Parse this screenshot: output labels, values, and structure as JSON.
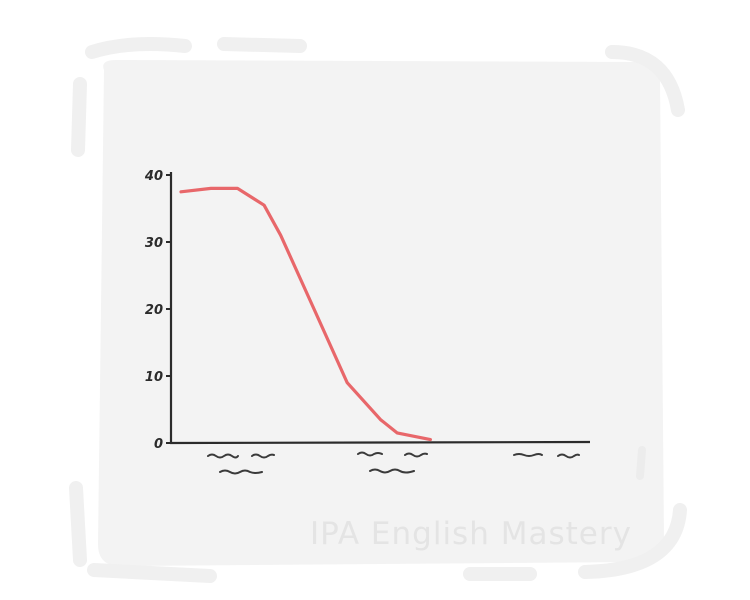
{
  "chart_data": {
    "type": "line",
    "title": "",
    "xlabel": "",
    "ylabel": "",
    "x": [
      0,
      0.9,
      1.7,
      2.5,
      3.0,
      4.0,
      5.0,
      6.0,
      6.5,
      7.5
    ],
    "series": [
      {
        "values": [
          37.5,
          38,
          38,
          35.5,
          31,
          20,
          9,
          3.5,
          1.5,
          0.5
        ]
      }
    ],
    "yticks": [
      0,
      10,
      20,
      30,
      40
    ],
    "ylim": [
      0,
      40
    ],
    "xlim": [
      -0.3,
      12.3
    ],
    "x_category_marks": [
      "squiggle-group-1",
      "squiggle-group-2",
      "squiggle-group-3"
    ],
    "grid": false,
    "line_color": "#e8676a",
    "axis_color": "#2b2b2b",
    "panel_color": "#f3f3f3"
  },
  "watermark": "IPA English Mastery"
}
